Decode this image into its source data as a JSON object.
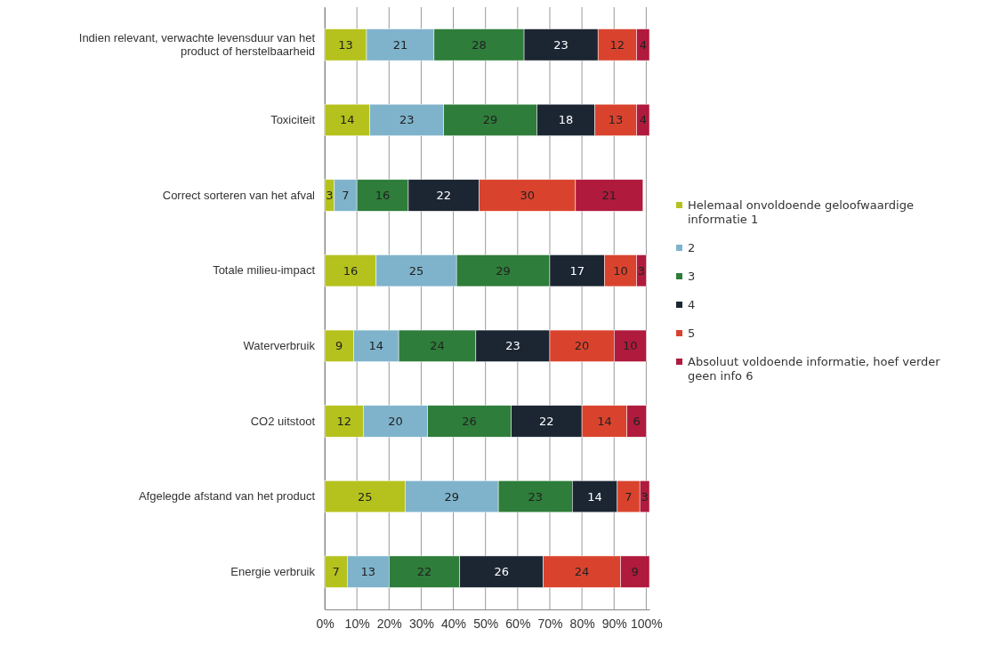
{
  "chart_data": {
    "type": "bar",
    "orientation": "horizontal",
    "stacked": true,
    "categories": [
      "Indien relevant, verwachte levensduur van het product of herstelbaarheid",
      "Toxiciteit",
      "Correct sorteren van het afval",
      "Totale milieu-impact",
      "Waterverbruik",
      "CO2 uitstoot",
      "Afgelegde afstand van het product",
      "Energie verbruik"
    ],
    "series": [
      {
        "name": "Helemaal onvoldoende geloofwaardige informatie 1",
        "color": "#b5c21e",
        "values": [
          13,
          14,
          3,
          16,
          9,
          12,
          25,
          7
        ]
      },
      {
        "name": "2",
        "color": "#7fb3cc",
        "values": [
          21,
          23,
          7,
          25,
          14,
          20,
          29,
          13
        ]
      },
      {
        "name": "3",
        "color": "#2e7d3a",
        "values": [
          28,
          29,
          16,
          29,
          24,
          26,
          23,
          22
        ]
      },
      {
        "name": "4",
        "color": "#1c2633",
        "values": [
          23,
          18,
          22,
          17,
          23,
          22,
          14,
          26
        ]
      },
      {
        "name": "5",
        "color": "#d9432e",
        "values": [
          12,
          13,
          30,
          10,
          20,
          14,
          7,
          24
        ]
      },
      {
        "name": "Absoluut voldoende informatie, hoef verder geen info 6",
        "color": "#b01a3c",
        "values": [
          4,
          4,
          21,
          3,
          10,
          6,
          3,
          9
        ]
      }
    ],
    "xlim": [
      0,
      101
    ],
    "xticks": [
      {
        "value": 0,
        "label": "0%"
      },
      {
        "value": 10,
        "label": "10%"
      },
      {
        "value": 20,
        "label": "20%"
      },
      {
        "value": 30,
        "label": "30%"
      },
      {
        "value": 40,
        "label": "40%"
      },
      {
        "value": 50,
        "label": "50%"
      },
      {
        "value": 60,
        "label": "60%"
      },
      {
        "value": 70,
        "label": "70%"
      },
      {
        "value": 80,
        "label": "80%"
      },
      {
        "value": 90,
        "label": "90%"
      },
      {
        "value": 100,
        "label": "100%"
      }
    ],
    "grid": "x",
    "legend": "right",
    "data_labels": true
  }
}
